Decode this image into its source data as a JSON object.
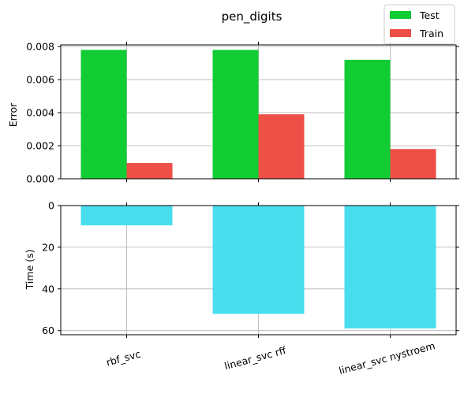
{
  "chart_data": [
    {
      "type": "bar",
      "title": "pen_digits",
      "ylabel": "Error",
      "xlabel": "",
      "categories": [
        "rbf_svc",
        "linear_svc rff",
        "linear_svc nystroem"
      ],
      "series": [
        {
          "name": "Test",
          "color": "#11cc33",
          "values": [
            0.0078,
            0.0078,
            0.0072
          ]
        },
        {
          "name": "Train",
          "color": "#ee4f47",
          "values": [
            0.00095,
            0.0039,
            0.0018
          ]
        }
      ],
      "ylim": [
        0,
        0.0081
      ],
      "yticks": [
        "0.000",
        "0.002",
        "0.004",
        "0.006",
        "0.008"
      ],
      "ytick_values": [
        0,
        0.002,
        0.004,
        0.006,
        0.008
      ],
      "grid": true,
      "legend": "top-right"
    },
    {
      "type": "bar",
      "ylabel": "Time (s)",
      "xlabel": "",
      "categories": [
        "rbf_svc",
        "linear_svc rff",
        "linear_svc nystroem"
      ],
      "series": [
        {
          "color": "#48deee",
          "values": [
            9.5,
            52,
            59
          ]
        }
      ],
      "ylim": [
        0,
        62
      ],
      "y_inverted": true,
      "yticks": [
        "0",
        "20",
        "40",
        "60"
      ],
      "ytick_values": [
        0,
        20,
        40,
        60
      ],
      "grid": true
    }
  ]
}
